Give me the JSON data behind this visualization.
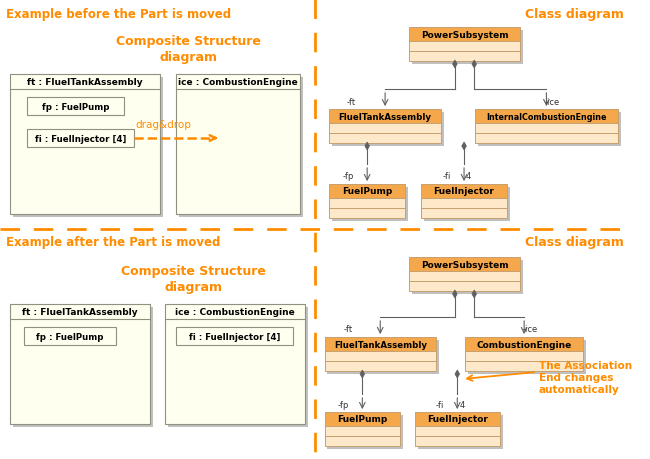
{
  "bg_color": "#ffffff",
  "orange": "#FF8C00",
  "box_header_fill": "#F5A84B",
  "box_row_fill": "#FDE9C9",
  "box_stroke": "#C8A070",
  "inner_fill": "#FFFFF0",
  "inner_stroke": "#A0A080",
  "shadow_color": "#C0C0C0",
  "arrow_color": "#606060",
  "title_before": "Example before the Part is moved",
  "title_after": "Example after the Part is moved",
  "cs_label": "Composite Structure\ndiagram",
  "cd_label": "Class diagram"
}
